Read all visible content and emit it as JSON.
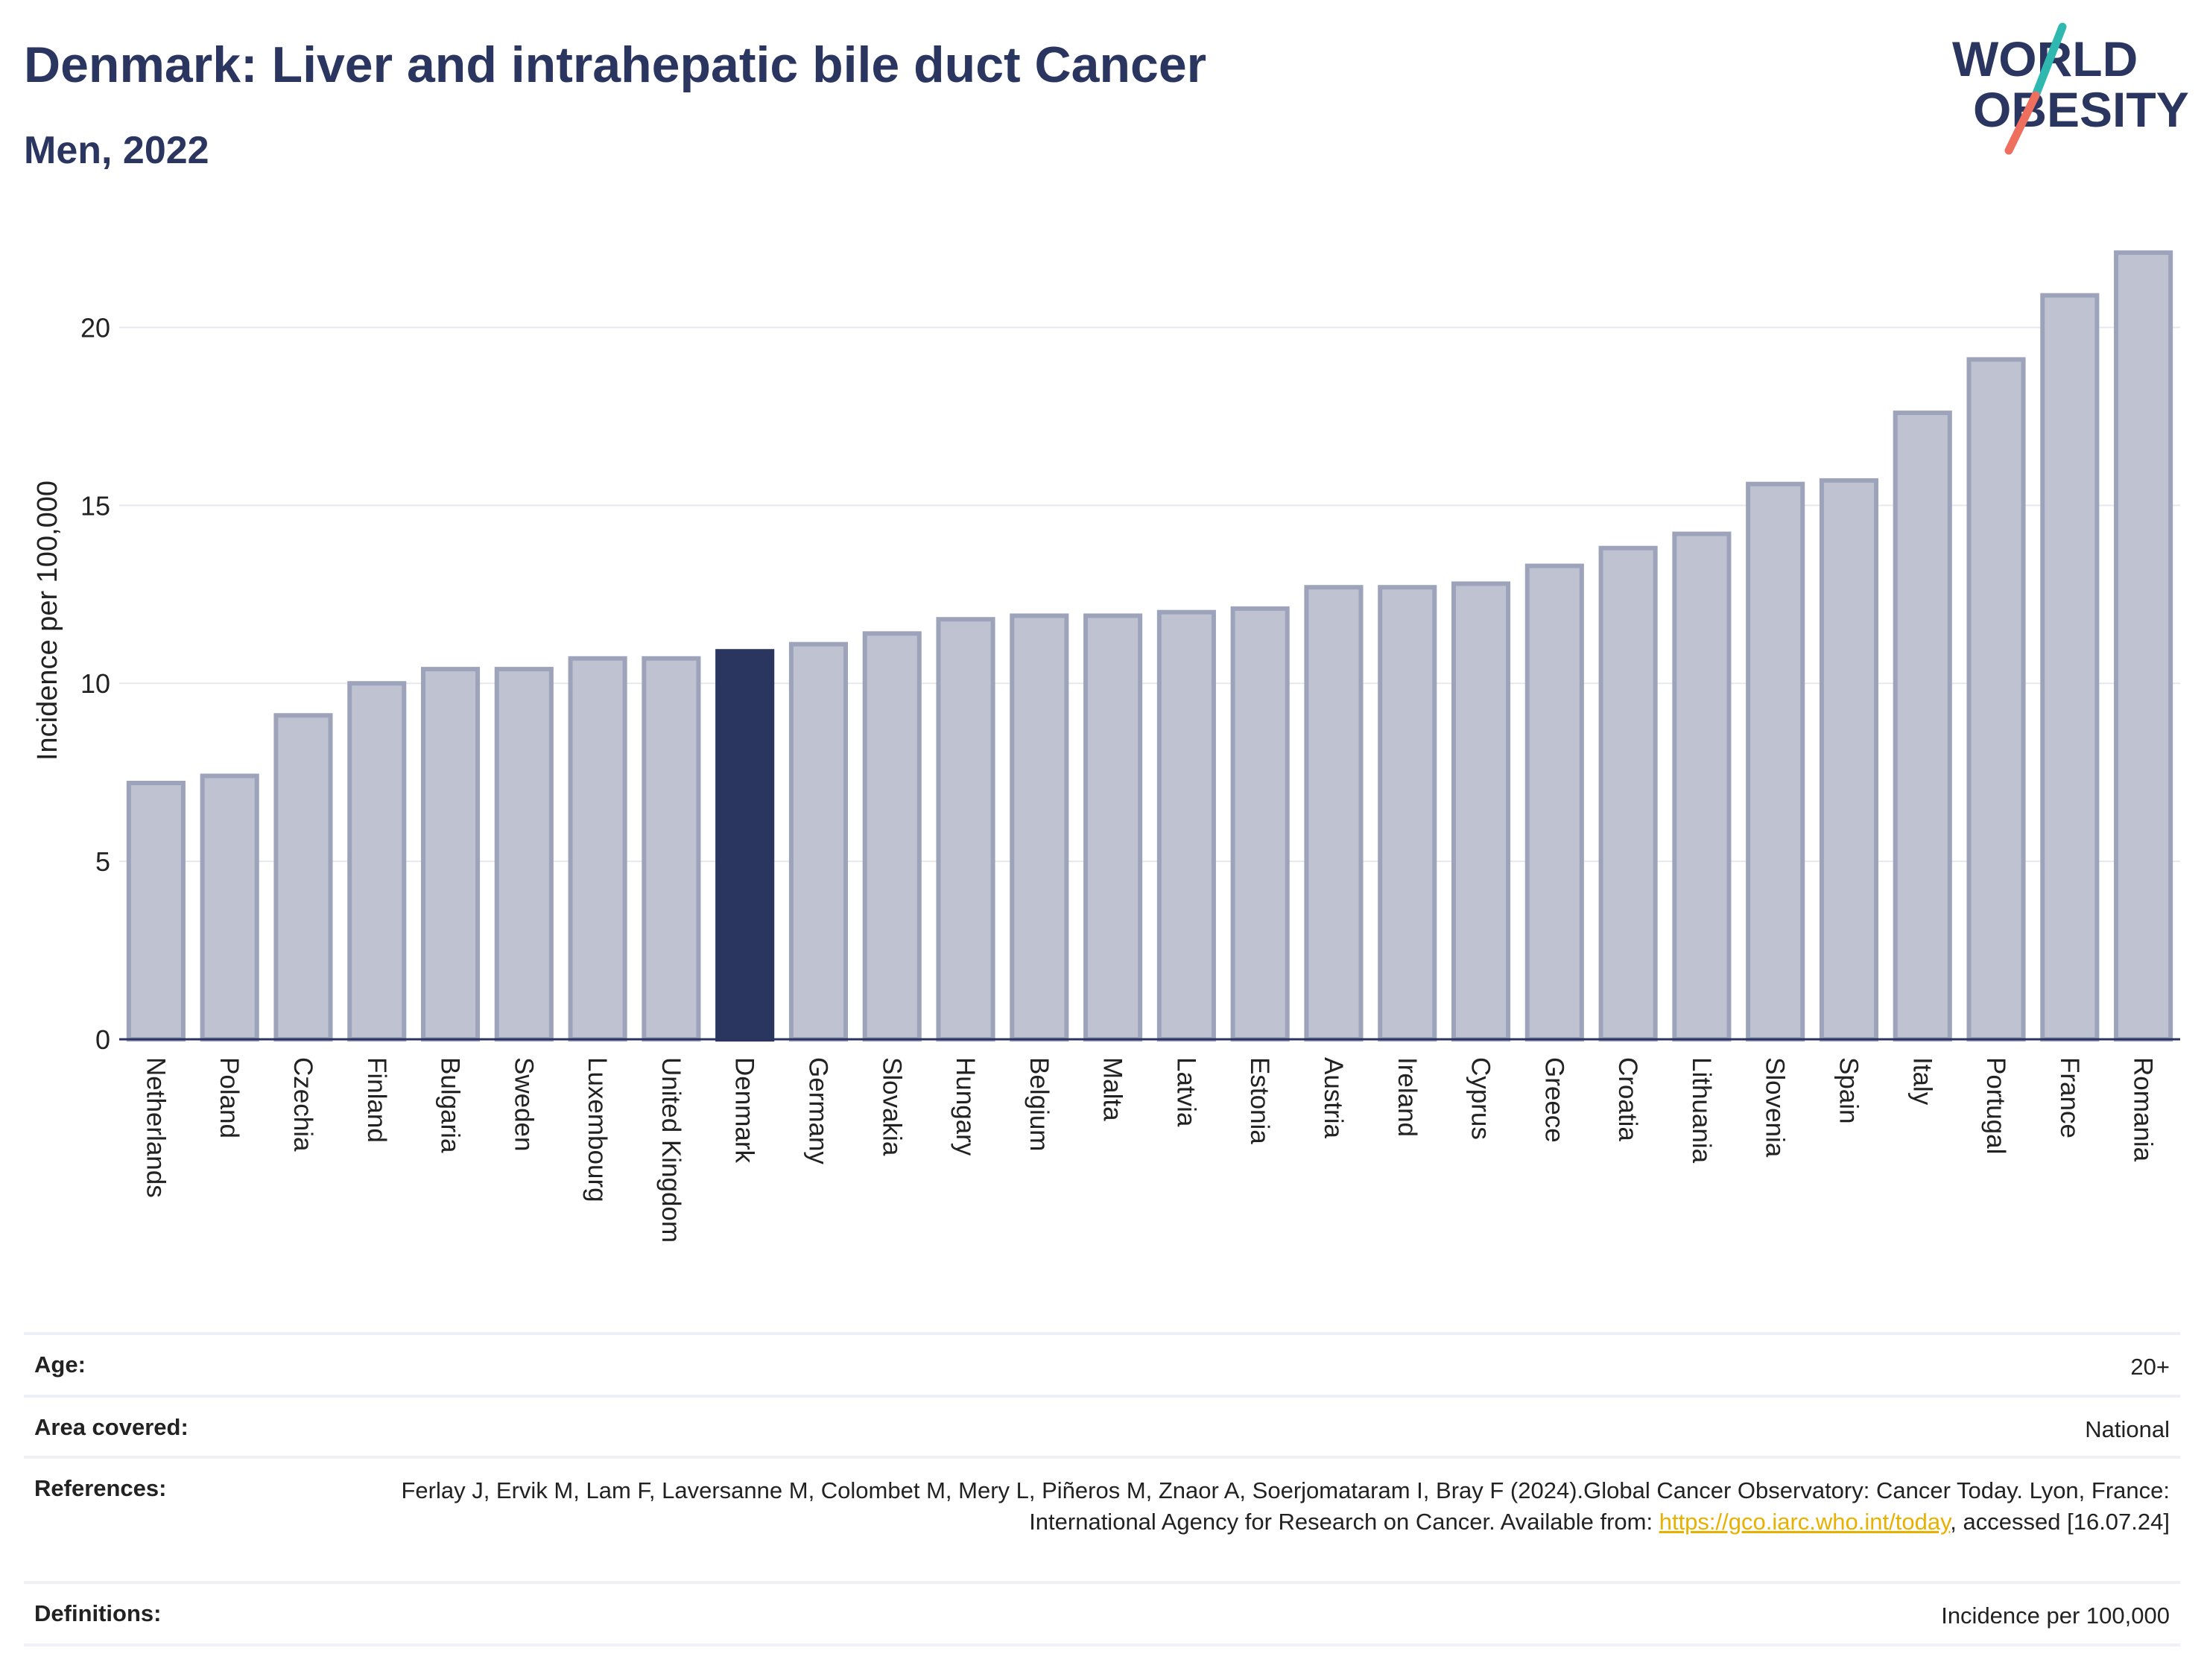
{
  "header": {
    "title": "Denmark: Liver and intrahepatic bile duct Cancer",
    "subtitle": "Men, 2022"
  },
  "logo": {
    "line1": "WORLD",
    "line2": "OBESITY",
    "colors": {
      "text": "#2a3560",
      "slash_top": "#2fb8b0",
      "slash_bottom": "#ef6f5e"
    }
  },
  "colors": {
    "bar_default": "#bfc3d1",
    "bar_default_border": "#9da3ba",
    "bar_highlight": "#2a3560",
    "grid": "#e6e8ef",
    "axis": "#2a3560",
    "link": "#e9b000"
  },
  "chart_data": {
    "type": "bar",
    "title": "Denmark: Liver and intrahepatic bile duct Cancer",
    "subtitle": "Men, 2022",
    "xlabel": "",
    "ylabel": "Incidence per 100,000",
    "ylim": [
      0,
      22.5
    ],
    "yticks": [
      0,
      5,
      10,
      15,
      20
    ],
    "grid": true,
    "highlight": "Denmark",
    "categories": [
      "Netherlands",
      "Poland",
      "Czechia",
      "Finland",
      "Bulgaria",
      "Sweden",
      "Luxembourg",
      "United Kingdom",
      "Denmark",
      "Germany",
      "Slovakia",
      "Hungary",
      "Belgium",
      "Malta",
      "Latvia",
      "Estonia",
      "Austria",
      "Ireland",
      "Cyprus",
      "Greece",
      "Croatia",
      "Lithuania",
      "Slovenia",
      "Spain",
      "Italy",
      "Portugal",
      "France",
      "Romania"
    ],
    "values": [
      7.2,
      7.4,
      9.1,
      10.0,
      10.4,
      10.4,
      10.7,
      10.7,
      10.9,
      11.1,
      11.4,
      11.8,
      11.9,
      11.9,
      12.0,
      12.1,
      12.7,
      12.7,
      12.8,
      13.3,
      13.8,
      14.2,
      15.6,
      15.7,
      17.6,
      19.1,
      20.9,
      22.1
    ]
  },
  "info": {
    "age_label": "Age:",
    "age_value": "20+",
    "area_label": "Area covered:",
    "area_value": "National",
    "refs_label": "References:",
    "refs_text_1": "Ferlay J, Ervik M, Lam F, Laversanne M, Colombet M, Mery L, Piñeros M, Znaor A, Soerjomataram I, Bray F (2024).Global Cancer Observatory: Cancer Today. Lyon, France: International Agency for Research on Cancer. Available from: ",
    "refs_link": "https://gco.iarc.who.int/today",
    "refs_text_2": ", accessed [16.07.24]",
    "defs_label": "Definitions:",
    "defs_value": "Incidence per 100,000"
  }
}
